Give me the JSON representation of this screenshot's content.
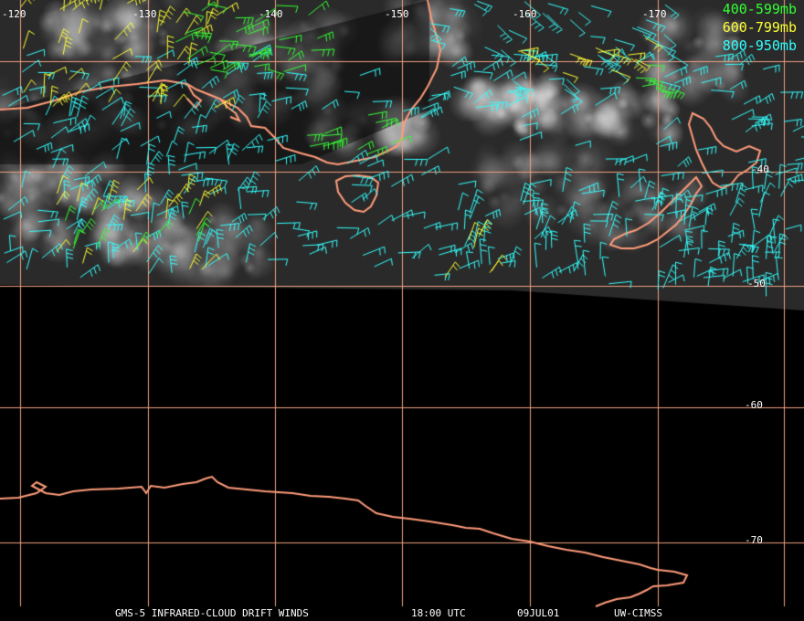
{
  "legend": {
    "items": [
      {
        "label": "400-599mb",
        "color": "#33ff33"
      },
      {
        "label": "600-799mb",
        "color": "#ffff33"
      },
      {
        "label": "800-950mb",
        "color": "#33ffff"
      }
    ]
  },
  "grid": {
    "color": "#f0a080",
    "longitude_labels": [
      "-120",
      "-130",
      "-140",
      "-150",
      "-160",
      "-170"
    ],
    "latitude_labels": [
      "-40",
      "-50",
      "-60",
      "-70"
    ]
  },
  "footer": {
    "title": "GMS-5 INFRARED-CLOUD DRIFT WINDS",
    "time": "18:00 UTC",
    "date": "09JUL01",
    "source": "UW-CIMSS"
  },
  "colors": {
    "coastline": "#ff9c7a",
    "satellite_background": "#2a2a2a",
    "space_background": "#000000"
  }
}
